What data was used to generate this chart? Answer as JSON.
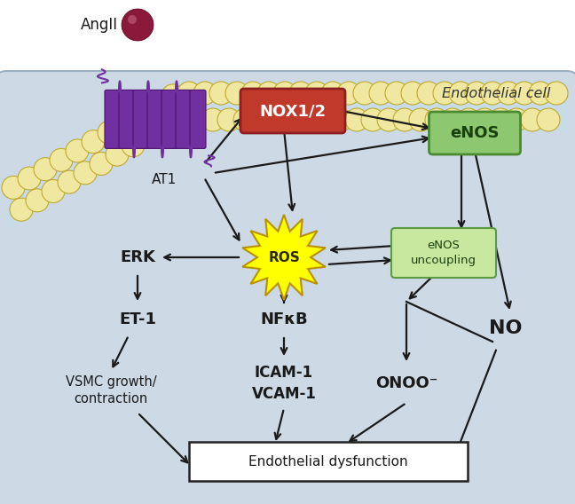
{
  "background_color": "#cdd9e5",
  "white_bg": "#ffffff",
  "title_text": "Endothelial cell",
  "angII_label": "AngII",
  "AT1_label": "AT1",
  "NOX_label": "NOX1/2",
  "eNOS_label": "eNOS",
  "eNOS_uncoupling_label": "eNOS\nuncoupling",
  "ROS_label": "ROS",
  "ERK_label": "ERK",
  "ET1_label": "ET-1",
  "VSMC_label": "VSMC growth/\ncontraction",
  "NFkB_label": "NFκB",
  "ICAM_VCAM_label": "ICAM-1\nVCAM-1",
  "ONOO_label": "ONOO⁻",
  "NO_label": "NO",
  "Edys_label": "Endothelial dysfunction",
  "NOX_box_color": "#c0392b",
  "NOX_box_edge": "#8b2020",
  "eNOS_box_color": "#8dc870",
  "eNOS_box_edge": "#4a8a30",
  "eNOS_unc_box_color": "#c8e8a0",
  "eNOS_unc_box_edge": "#5a9a40",
  "ROS_star_color": "#ffff00",
  "ROS_star_edge": "#b89000",
  "Edys_box_color": "#ffffff",
  "Edys_box_edge": "#222222",
  "membrane_color": "#c8dce8",
  "bead_color": "#f0e8a0",
  "bead_edge": "#c0a830",
  "receptor_color": "#7030a0",
  "angII_bead_color": "#8b1a3a",
  "arrow_color": "#1a1a1a",
  "text_color": "#1a1a1a"
}
